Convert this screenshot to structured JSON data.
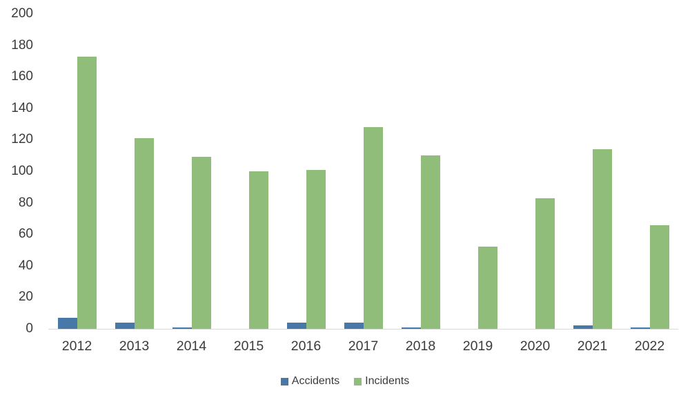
{
  "chart_data": {
    "type": "bar",
    "title": "",
    "categories": [
      "2012",
      "2013",
      "2014",
      "2015",
      "2016",
      "2017",
      "2018",
      "2019",
      "2020",
      "2021",
      "2022"
    ],
    "series": [
      {
        "name": "Accidents",
        "color": "#4878a8",
        "values": [
          7,
          4,
          1,
          0,
          4,
          4,
          1,
          0,
          0,
          2,
          1
        ]
      },
      {
        "name": "Incidents",
        "color": "#91bd7b",
        "values": [
          173,
          121,
          109,
          100,
          101,
          128,
          110,
          52,
          83,
          114,
          66
        ]
      }
    ],
    "xlabel": "",
    "ylabel": "",
    "ylim": [
      0,
      200
    ],
    "ytick_step": 20,
    "yticks": [
      0,
      20,
      40,
      60,
      80,
      100,
      120,
      140,
      160,
      180,
      200
    ],
    "grid": false,
    "legend_position": "bottom",
    "axis_line_color": "#d9d9d9",
    "text_color": "#3b3b3b",
    "background_color": "#ffffff"
  }
}
